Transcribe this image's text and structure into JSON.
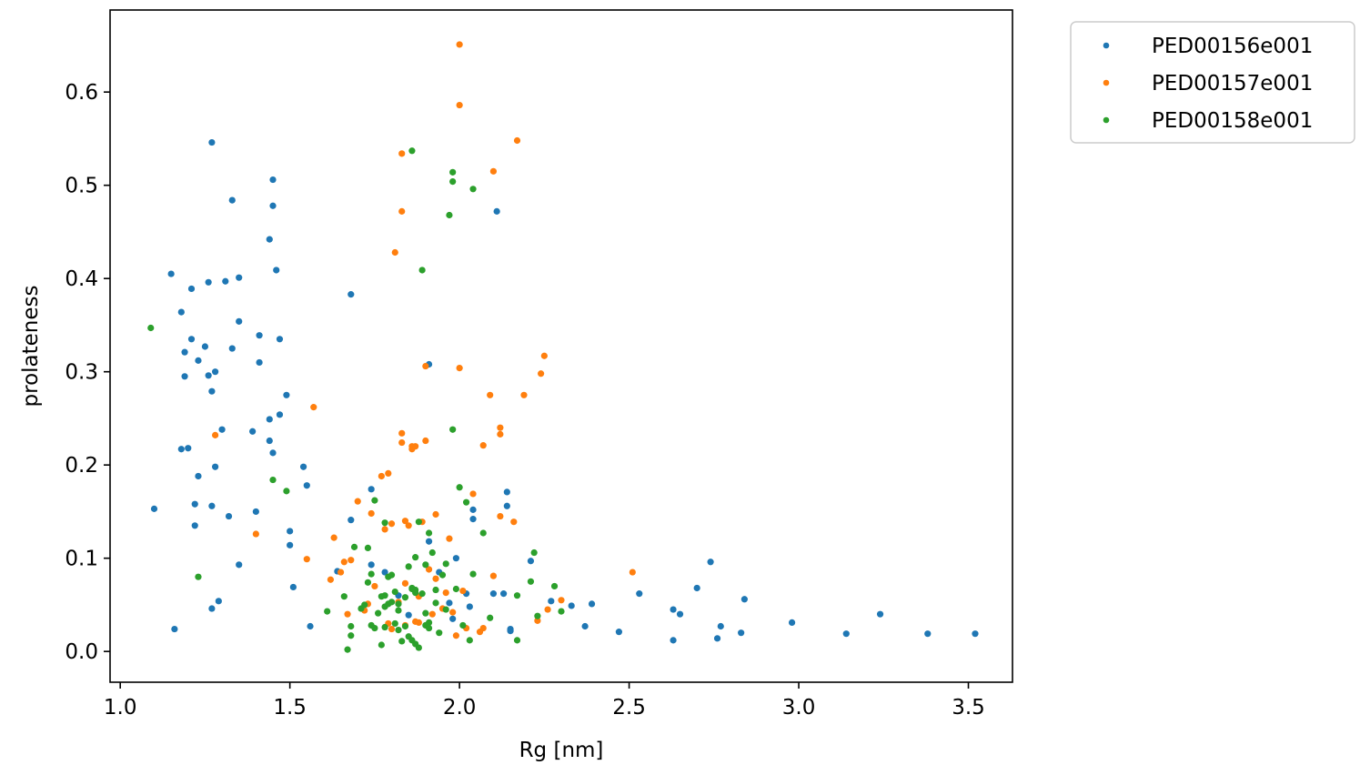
{
  "chart_data": {
    "type": "scatter",
    "title": "",
    "xlabel": "Rg [nm]",
    "ylabel": "prolateness",
    "xlim": [
      0.97,
      3.63
    ],
    "ylim": [
      -0.033,
      0.688
    ],
    "xticks": [
      1.0,
      1.5,
      2.0,
      2.5,
      3.0,
      3.5
    ],
    "xtick_labels": [
      "1.0",
      "1.5",
      "2.0",
      "2.5",
      "3.0",
      "3.5"
    ],
    "yticks": [
      0.0,
      0.1,
      0.2,
      0.3,
      0.4,
      0.5,
      0.6
    ],
    "ytick_labels": [
      "0.0",
      "0.1",
      "0.2",
      "0.3",
      "0.4",
      "0.5",
      "0.6"
    ],
    "grid": false,
    "legend_position": "outside-top-right",
    "series": [
      {
        "name": "PED00156e001",
        "color": "#1f77b4",
        "points": [
          [
            1.1,
            0.153
          ],
          [
            1.15,
            0.405
          ],
          [
            1.16,
            0.024
          ],
          [
            1.18,
            0.364
          ],
          [
            1.18,
            0.217
          ],
          [
            1.19,
            0.321
          ],
          [
            1.19,
            0.295
          ],
          [
            1.2,
            0.218
          ],
          [
            1.21,
            0.389
          ],
          [
            1.21,
            0.335
          ],
          [
            1.22,
            0.158
          ],
          [
            1.22,
            0.135
          ],
          [
            1.23,
            0.188
          ],
          [
            1.23,
            0.312
          ],
          [
            1.25,
            0.327
          ],
          [
            1.26,
            0.296
          ],
          [
            1.26,
            0.396
          ],
          [
            1.27,
            0.546
          ],
          [
            1.27,
            0.279
          ],
          [
            1.27,
            0.156
          ],
          [
            1.28,
            0.198
          ],
          [
            1.28,
            0.3
          ],
          [
            1.27,
            0.046
          ],
          [
            1.29,
            0.054
          ],
          [
            1.3,
            0.238
          ],
          [
            1.31,
            0.397
          ],
          [
            1.32,
            0.145
          ],
          [
            1.33,
            0.484
          ],
          [
            1.33,
            0.325
          ],
          [
            1.35,
            0.354
          ],
          [
            1.35,
            0.401
          ],
          [
            1.35,
            0.093
          ],
          [
            1.39,
            0.236
          ],
          [
            1.4,
            0.15
          ],
          [
            1.41,
            0.339
          ],
          [
            1.41,
            0.31
          ],
          [
            1.44,
            0.442
          ],
          [
            1.44,
            0.226
          ],
          [
            1.44,
            0.249
          ],
          [
            1.45,
            0.506
          ],
          [
            1.45,
            0.213
          ],
          [
            1.45,
            0.478
          ],
          [
            1.46,
            0.409
          ],
          [
            1.47,
            0.335
          ],
          [
            1.47,
            0.254
          ],
          [
            1.49,
            0.275
          ],
          [
            1.5,
            0.129
          ],
          [
            1.5,
            0.114
          ],
          [
            1.51,
            0.069
          ],
          [
            1.54,
            0.198
          ],
          [
            1.55,
            0.178
          ],
          [
            1.56,
            0.027
          ],
          [
            1.64,
            0.086
          ],
          [
            1.68,
            0.141
          ],
          [
            1.68,
            0.383
          ],
          [
            1.74,
            0.174
          ],
          [
            1.74,
            0.093
          ],
          [
            1.78,
            0.085
          ],
          [
            1.82,
            0.06
          ],
          [
            1.85,
            0.039
          ],
          [
            1.91,
            0.118
          ],
          [
            1.91,
            0.308
          ],
          [
            1.94,
            0.085
          ],
          [
            1.97,
            0.052
          ],
          [
            1.98,
            0.035
          ],
          [
            1.99,
            0.1
          ],
          [
            2.02,
            0.062
          ],
          [
            2.03,
            0.048
          ],
          [
            2.04,
            0.152
          ],
          [
            2.04,
            0.142
          ],
          [
            2.1,
            0.062
          ],
          [
            2.11,
            0.472
          ],
          [
            2.13,
            0.062
          ],
          [
            2.14,
            0.171
          ],
          [
            2.14,
            0.156
          ],
          [
            2.15,
            0.024
          ],
          [
            2.15,
            0.022
          ],
          [
            2.21,
            0.097
          ],
          [
            2.27,
            0.054
          ],
          [
            2.33,
            0.049
          ],
          [
            2.37,
            0.027
          ],
          [
            2.39,
            0.051
          ],
          [
            2.47,
            0.021
          ],
          [
            2.53,
            0.062
          ],
          [
            2.63,
            0.045
          ],
          [
            2.63,
            0.012
          ],
          [
            2.65,
            0.04
          ],
          [
            2.7,
            0.068
          ],
          [
            2.74,
            0.096
          ],
          [
            2.76,
            0.014
          ],
          [
            2.77,
            0.027
          ],
          [
            2.83,
            0.02
          ],
          [
            2.84,
            0.056
          ],
          [
            2.98,
            0.031
          ],
          [
            3.14,
            0.019
          ],
          [
            3.24,
            0.04
          ],
          [
            3.38,
            0.019
          ],
          [
            3.52,
            0.019
          ]
        ]
      },
      {
        "name": "PED00157e001",
        "color": "#ff7f0e",
        "points": [
          [
            1.28,
            0.232
          ],
          [
            1.4,
            0.126
          ],
          [
            1.55,
            0.099
          ],
          [
            1.57,
            0.262
          ],
          [
            1.62,
            0.077
          ],
          [
            1.63,
            0.122
          ],
          [
            1.65,
            0.085
          ],
          [
            1.66,
            0.096
          ],
          [
            1.67,
            0.04
          ],
          [
            1.68,
            0.098
          ],
          [
            1.7,
            0.161
          ],
          [
            1.72,
            0.044
          ],
          [
            1.73,
            0.051
          ],
          [
            1.74,
            0.148
          ],
          [
            1.75,
            0.07
          ],
          [
            1.77,
            0.188
          ],
          [
            1.78,
            0.131
          ],
          [
            1.79,
            0.191
          ],
          [
            1.79,
            0.03
          ],
          [
            1.8,
            0.024
          ],
          [
            1.8,
            0.137
          ],
          [
            1.81,
            0.428
          ],
          [
            1.82,
            0.053
          ],
          [
            1.83,
            0.224
          ],
          [
            1.83,
            0.534
          ],
          [
            1.83,
            0.472
          ],
          [
            1.83,
            0.234
          ],
          [
            1.84,
            0.14
          ],
          [
            1.84,
            0.028
          ],
          [
            1.84,
            0.073
          ],
          [
            1.85,
            0.135
          ],
          [
            1.86,
            0.22
          ],
          [
            1.86,
            0.217
          ],
          [
            1.87,
            0.22
          ],
          [
            1.87,
            0.032
          ],
          [
            1.88,
            0.059
          ],
          [
            1.88,
            0.031
          ],
          [
            1.89,
            0.139
          ],
          [
            1.9,
            0.226
          ],
          [
            1.9,
            0.306
          ],
          [
            1.91,
            0.088
          ],
          [
            1.92,
            0.04
          ],
          [
            1.93,
            0.078
          ],
          [
            1.93,
            0.147
          ],
          [
            1.95,
            0.046
          ],
          [
            1.96,
            0.063
          ],
          [
            1.97,
            0.121
          ],
          [
            1.98,
            0.042
          ],
          [
            1.99,
            0.017
          ],
          [
            2.0,
            0.651
          ],
          [
            2.0,
            0.586
          ],
          [
            2.0,
            0.304
          ],
          [
            2.01,
            0.065
          ],
          [
            2.02,
            0.025
          ],
          [
            2.04,
            0.169
          ],
          [
            2.06,
            0.021
          ],
          [
            2.07,
            0.221
          ],
          [
            2.07,
            0.025
          ],
          [
            2.09,
            0.275
          ],
          [
            2.1,
            0.515
          ],
          [
            2.1,
            0.081
          ],
          [
            2.12,
            0.145
          ],
          [
            2.12,
            0.24
          ],
          [
            2.12,
            0.233
          ],
          [
            2.16,
            0.139
          ],
          [
            2.17,
            0.548
          ],
          [
            2.19,
            0.275
          ],
          [
            2.23,
            0.033
          ],
          [
            2.24,
            0.298
          ],
          [
            2.25,
            0.317
          ],
          [
            2.26,
            0.045
          ],
          [
            2.3,
            0.055
          ],
          [
            2.51,
            0.085
          ]
        ]
      },
      {
        "name": "PED00158e001",
        "color": "#2ca02c",
        "points": [
          [
            1.09,
            0.347
          ],
          [
            1.23,
            0.08
          ],
          [
            1.45,
            0.184
          ],
          [
            1.49,
            0.172
          ],
          [
            1.61,
            0.043
          ],
          [
            1.66,
            0.059
          ],
          [
            1.67,
            0.002
          ],
          [
            1.68,
            0.027
          ],
          [
            1.68,
            0.017
          ],
          [
            1.69,
            0.112
          ],
          [
            1.71,
            0.046
          ],
          [
            1.72,
            0.05
          ],
          [
            1.73,
            0.111
          ],
          [
            1.73,
            0.074
          ],
          [
            1.74,
            0.028
          ],
          [
            1.74,
            0.083
          ],
          [
            1.75,
            0.162
          ],
          [
            1.75,
            0.025
          ],
          [
            1.76,
            0.041
          ],
          [
            1.77,
            0.007
          ],
          [
            1.77,
            0.059
          ],
          [
            1.78,
            0.048
          ],
          [
            1.78,
            0.026
          ],
          [
            1.78,
            0.06
          ],
          [
            1.78,
            0.138
          ],
          [
            1.79,
            0.08
          ],
          [
            1.79,
            0.051
          ],
          [
            1.8,
            0.053
          ],
          [
            1.8,
            0.082
          ],
          [
            1.81,
            0.064
          ],
          [
            1.81,
            0.03
          ],
          [
            1.82,
            0.051
          ],
          [
            1.82,
            0.044
          ],
          [
            1.82,
            0.023
          ],
          [
            1.83,
            0.011
          ],
          [
            1.84,
            0.027
          ],
          [
            1.84,
            0.058
          ],
          [
            1.85,
            0.091
          ],
          [
            1.85,
            0.016
          ],
          [
            1.86,
            0.067
          ],
          [
            1.86,
            0.068
          ],
          [
            1.86,
            0.012
          ],
          [
            1.86,
            0.537
          ],
          [
            1.87,
            0.101
          ],
          [
            1.87,
            0.063
          ],
          [
            1.87,
            0.066
          ],
          [
            1.87,
            0.008
          ],
          [
            1.88,
            0.004
          ],
          [
            1.88,
            0.139
          ],
          [
            1.89,
            0.409
          ],
          [
            1.89,
            0.062
          ],
          [
            1.9,
            0.028
          ],
          [
            1.9,
            0.041
          ],
          [
            1.9,
            0.093
          ],
          [
            1.91,
            0.031
          ],
          [
            1.91,
            0.025
          ],
          [
            1.91,
            0.127
          ],
          [
            1.92,
            0.106
          ],
          [
            1.93,
            0.052
          ],
          [
            1.93,
            0.066
          ],
          [
            1.94,
            0.02
          ],
          [
            1.95,
            0.082
          ],
          [
            1.96,
            0.094
          ],
          [
            1.96,
            0.045
          ],
          [
            1.97,
            0.468
          ],
          [
            1.98,
            0.514
          ],
          [
            1.98,
            0.504
          ],
          [
            1.98,
            0.238
          ],
          [
            1.99,
            0.067
          ],
          [
            2.0,
            0.176
          ],
          [
            2.01,
            0.028
          ],
          [
            2.02,
            0.16
          ],
          [
            2.03,
            0.012
          ],
          [
            2.04,
            0.496
          ],
          [
            2.04,
            0.083
          ],
          [
            2.07,
            0.127
          ],
          [
            2.09,
            0.036
          ],
          [
            2.17,
            0.012
          ],
          [
            2.17,
            0.06
          ],
          [
            2.21,
            0.075
          ],
          [
            2.22,
            0.106
          ],
          [
            2.23,
            0.038
          ],
          [
            2.28,
            0.07
          ],
          [
            2.3,
            0.043
          ]
        ]
      }
    ]
  }
}
